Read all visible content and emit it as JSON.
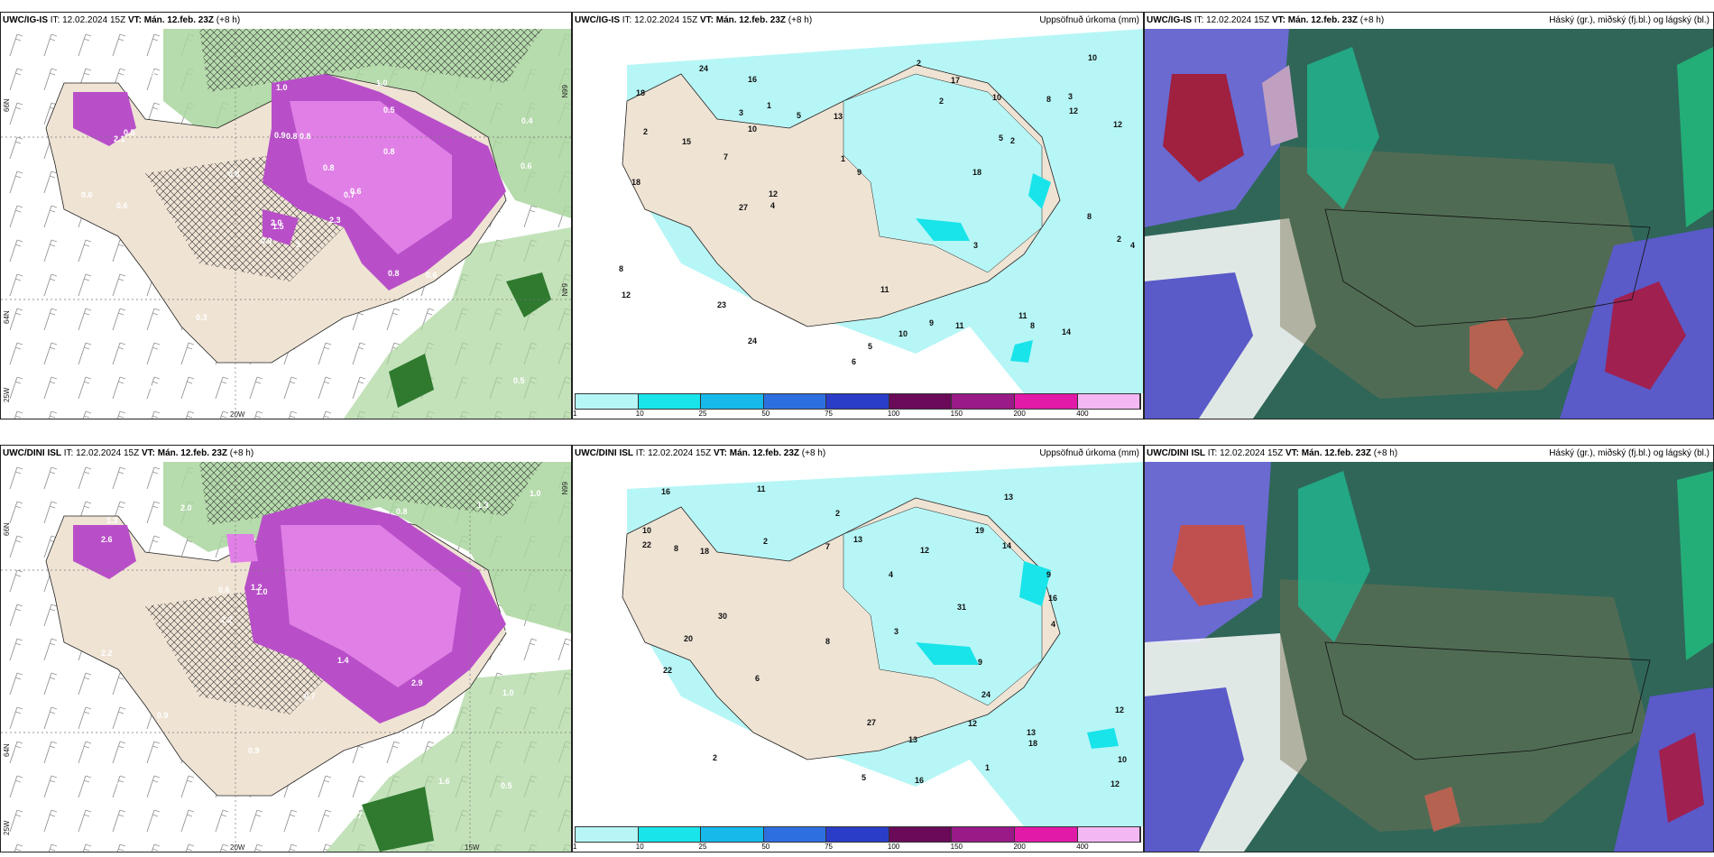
{
  "panels": {
    "top_left": {
      "model": "UWC/IG-IS",
      "it_label": "IT:",
      "it_value": "12.02.2024 15Z",
      "vt_label": "VT:",
      "vt_value": "Mán. 12.feb. 23Z",
      "lead": "(+8 h)",
      "right_title": ""
    },
    "top_mid": {
      "model": "UWC/IG-IS",
      "it_label": "IT:",
      "it_value": "12.02.2024 15Z",
      "vt_label": "VT:",
      "vt_value": "Mán. 12.feb. 23Z",
      "lead": "(+8 h)",
      "right_title": "Uppsöfnuð úrkoma (mm)"
    },
    "top_right": {
      "model": "UWC/IG-IS",
      "it_label": "IT:",
      "it_value": "12.02.2024 15Z",
      "vt_label": "VT:",
      "vt_value": "Mán. 12.feb. 23Z",
      "lead": "(+8 h)",
      "right_title": "Háský (gr.), miðský (fj.bl.) og lágský (bl.)"
    },
    "bot_left": {
      "model": "UWC/DINI ISL",
      "it_label": "IT:",
      "it_value": "12.02.2024 15Z",
      "vt_label": "VT:",
      "vt_value": "Mán. 12.feb. 23Z",
      "lead": "(+8 h)",
      "right_title": ""
    },
    "bot_mid": {
      "model": "UWC/DINI ISL",
      "it_label": "IT:",
      "it_value": "12.02.2024 15Z",
      "vt_label": "VT:",
      "vt_value": "Mán. 12.feb. 23Z",
      "lead": "(+8 h)",
      "right_title": "Uppsöfnuð úrkoma (mm)"
    },
    "bot_right": {
      "model": "UWC/DINI ISL",
      "it_label": "IT:",
      "it_value": "12.02.2024 15Z",
      "vt_label": "VT:",
      "vt_value": "Mán. 12.feb. 23Z",
      "lead": "(+8 h)",
      "right_title": "Háský (gr.), miðský (fj.bl.) og lágský (bl.)"
    }
  },
  "axis_labels": {
    "lat66": "66N",
    "lat64": "64N",
    "lon25": "25W",
    "lon20": "20W",
    "lon15": "15W"
  },
  "colorbar": {
    "ticks": [
      "1",
      "10",
      "25",
      "50",
      "75",
      "100",
      "150",
      "200",
      "400"
    ],
    "colors": [
      "#b7f6f6",
      "#19e4ea",
      "#16b9ea",
      "#2e6fe0",
      "#2a3dc8",
      "#6a0a58",
      "#9a1a88",
      "#e21aa8",
      "#f3b8f3"
    ]
  },
  "values": {
    "tl": [
      "3",
      "2.1",
      "1.5",
      "0.5",
      "0.7",
      "0.3",
      "1.0",
      "0.8",
      "0.5",
      "2.3",
      "1.5",
      "0.5",
      "0.6",
      "0.4",
      "0.9",
      "0.8",
      "0.5",
      "0.9",
      "0.8",
      "1.1",
      "0.8",
      "0.9",
      "0.6",
      "0.8",
      "0.6",
      "0.6",
      "0.5",
      "1.0",
      "0.6",
      "0.8",
      "0.6",
      "2.0"
    ],
    "bl": [
      "2.9",
      "3.5",
      "1.4",
      "2.0",
      "1.0",
      "1.6",
      "1.8",
      "0.8",
      "0.6",
      "2.7",
      "2.6",
      "2.2",
      "1.3",
      "0.5",
      "0.9",
      "3.0",
      "0.7",
      "1.4",
      "1.2",
      "0.9",
      "1.0",
      "1.3",
      "2.2",
      "1.0"
    ],
    "tm": [
      "2",
      "10",
      "18",
      "5",
      "8",
      "6",
      "3",
      "4",
      "3",
      "4",
      "2",
      "1",
      "5",
      "23",
      "18",
      "24",
      "12",
      "13",
      "14",
      "9",
      "8",
      "8",
      "9",
      "11",
      "10",
      "7",
      "12",
      "17",
      "24",
      "27",
      "8",
      "11",
      "10",
      "15",
      "18",
      "16",
      "5",
      "2",
      "2",
      "12",
      "2",
      "3",
      "1",
      "11",
      "10",
      "12"
    ],
    "bm": [
      "4",
      "18",
      "10",
      "9",
      "5",
      "13",
      "16",
      "19",
      "30",
      "22",
      "13",
      "12",
      "9",
      "8",
      "10",
      "14",
      "12",
      "12",
      "13",
      "24",
      "22",
      "27",
      "31",
      "8",
      "16",
      "18",
      "16",
      "12",
      "3",
      "2",
      "2",
      "20",
      "13",
      "4",
      "6",
      "7",
      "11",
      "2",
      "1"
    ]
  }
}
